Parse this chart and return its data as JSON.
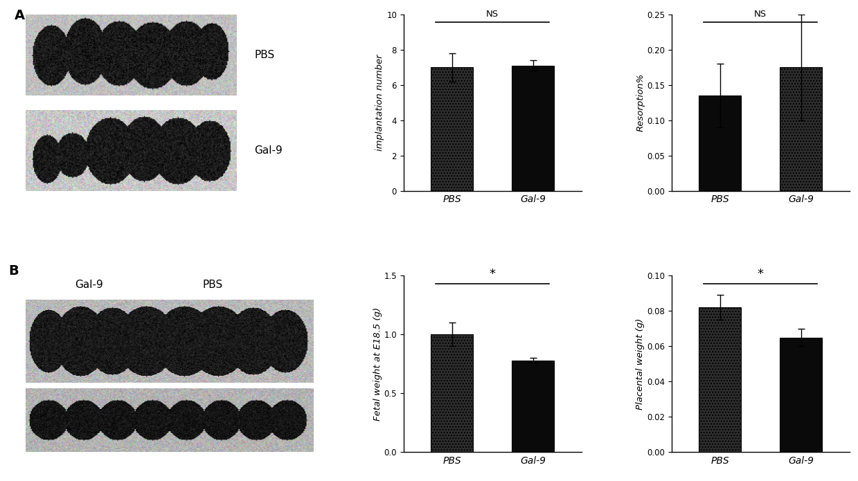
{
  "panel_A": {
    "implantation": {
      "PBS_val": 7.0,
      "PBS_err": 0.8,
      "Gal9_val": 7.1,
      "Gal9_err": 0.3,
      "ylabel": "implantation number",
      "ylim": [
        0,
        10
      ],
      "yticks": [
        0,
        2,
        4,
        6,
        8,
        10
      ],
      "sig": "NS",
      "PBS_dotted": true,
      "Gal9_dotted": false
    },
    "resorption": {
      "PBS_val": 0.135,
      "PBS_err": 0.045,
      "Gal9_val": 0.175,
      "Gal9_err": 0.075,
      "ylabel": "Resorption%",
      "ylim": [
        0.0,
        0.25
      ],
      "yticks": [
        0.0,
        0.05,
        0.1,
        0.15,
        0.2,
        0.25
      ],
      "sig": "NS",
      "PBS_dotted": false,
      "Gal9_dotted": true
    }
  },
  "panel_B": {
    "fetal_weight": {
      "PBS_val": 1.0,
      "PBS_err": 0.1,
      "Gal9_val": 0.78,
      "Gal9_err": 0.02,
      "ylabel": "Fetal weight at E18.5 (g)",
      "ylim": [
        0.0,
        1.5
      ],
      "yticks": [
        0.0,
        0.5,
        1.0,
        1.5
      ],
      "sig": "*",
      "PBS_dotted": true,
      "Gal9_dotted": false
    },
    "placental_weight": {
      "PBS_val": 0.082,
      "PBS_err": 0.007,
      "Gal9_val": 0.065,
      "Gal9_err": 0.005,
      "ylabel": "Placental weight (g)",
      "ylim": [
        0.0,
        0.1
      ],
      "yticks": [
        0.0,
        0.02,
        0.04,
        0.06,
        0.08,
        0.1
      ],
      "sig": "*",
      "PBS_dotted": true,
      "Gal9_dotted": false
    }
  },
  "categories": [
    "PBS",
    "Gal-9"
  ],
  "bg_color": "#ffffff",
  "label_A": "A",
  "label_B": "B"
}
